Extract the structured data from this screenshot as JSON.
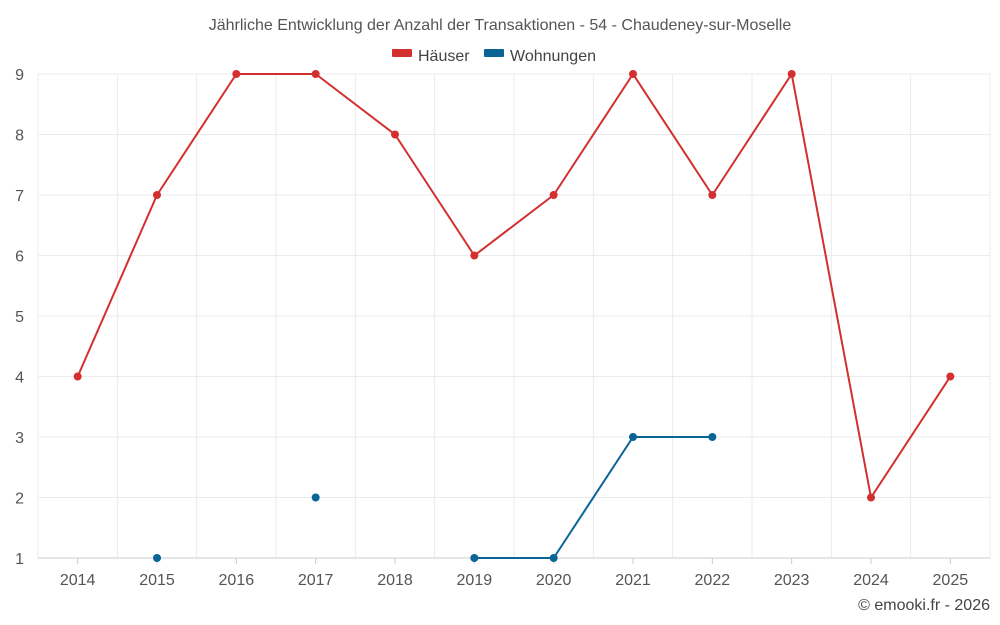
{
  "chart_data": {
    "type": "line",
    "title": "Jährliche Entwicklung der Anzahl der Transaktionen - 54 - Chaudeney-sur-Moselle",
    "categories": [
      "2014",
      "2015",
      "2016",
      "2017",
      "2018",
      "2019",
      "2020",
      "2021",
      "2022",
      "2023",
      "2024",
      "2025"
    ],
    "series": [
      {
        "name": "Häuser",
        "color": "#d32f2f",
        "values": [
          4,
          7,
          9,
          9,
          8,
          6,
          7,
          9,
          7,
          9,
          2,
          4
        ]
      },
      {
        "name": "Wohnungen",
        "color": "#0a6496",
        "values": [
          null,
          1,
          null,
          2,
          null,
          1,
          1,
          3,
          3,
          null,
          null,
          null
        ]
      }
    ],
    "yticks": [
      "1",
      "2",
      "3",
      "4",
      "5",
      "6",
      "7",
      "8",
      "9"
    ],
    "ylim": [
      1,
      9
    ],
    "grid": true,
    "legend_position": "top-center",
    "xlabel": "",
    "ylabel": ""
  },
  "credit": "© emooki.fr - 2026"
}
